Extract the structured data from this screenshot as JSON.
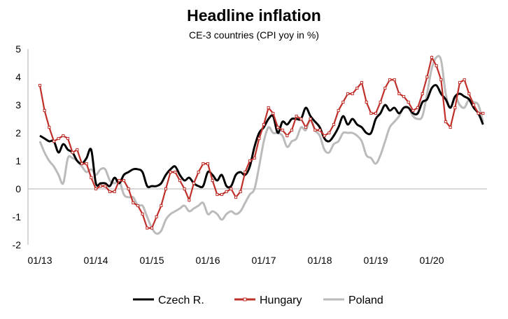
{
  "chart_data": {
    "type": "line",
    "title": "Headline inflation",
    "subtitle": "CE-3 countries (CPI yoy in %)",
    "xlabel": "",
    "ylabel": "",
    "ylim": [
      -2,
      5
    ],
    "yticks": [
      "-2",
      "-1",
      "0",
      "1",
      "2",
      "3",
      "4",
      "5"
    ],
    "xticks": [
      "01/13",
      "01/14",
      "01/15",
      "01/16",
      "01/17",
      "01/18",
      "01/19",
      "01/20"
    ],
    "x_start": "01/13",
    "x_frequency": "monthly",
    "grid": false,
    "legend_position": "bottom",
    "series": [
      {
        "name": "Czech R.",
        "color": "#000000",
        "marker": "none",
        "values": [
          1.9,
          1.8,
          1.7,
          1.7,
          1.3,
          1.6,
          1.4,
          1.3,
          1.0,
          0.9,
          1.1,
          1.4,
          0.2,
          0.2,
          0.2,
          0.1,
          0.4,
          0.2,
          0.5,
          0.6,
          0.7,
          0.7,
          0.6,
          0.1,
          0.1,
          0.1,
          0.2,
          0.5,
          0.7,
          0.8,
          0.5,
          0.3,
          0.4,
          0.2,
          0.1,
          0.1,
          0.6,
          0.5,
          0.3,
          0.5,
          0.1,
          0.1,
          0.5,
          0.6,
          0.5,
          0.8,
          1.5,
          2.0,
          2.2,
          2.5,
          2.6,
          2.0,
          2.4,
          2.3,
          2.5,
          2.5,
          2.5,
          2.9,
          2.6,
          2.4,
          2.2,
          1.8,
          1.7,
          1.9,
          2.2,
          2.6,
          2.3,
          2.5,
          2.3,
          2.2,
          2.0,
          2.0,
          2.5,
          2.7,
          3.0,
          2.8,
          2.9,
          2.7,
          2.9,
          2.9,
          2.7,
          2.7,
          3.1,
          3.2,
          3.6,
          3.7,
          3.4,
          3.2,
          2.9,
          3.3,
          3.4,
          3.3,
          3.2,
          2.9,
          2.7,
          2.3
        ]
      },
      {
        "name": "Hungary",
        "color": "#C0302B",
        "marker": "square",
        "values": [
          3.7,
          2.8,
          2.2,
          1.7,
          1.8,
          1.9,
          1.8,
          1.3,
          1.4,
          0.9,
          0.9,
          0.4,
          0.0,
          0.1,
          0.1,
          -0.1,
          -0.1,
          0.3,
          0.3,
          0.0,
          -0.5,
          -0.6,
          -0.9,
          -1.4,
          -1.4,
          -1.0,
          -0.6,
          0.0,
          0.6,
          0.6,
          0.3,
          0.0,
          -0.4,
          0.2,
          0.6,
          0.9,
          0.9,
          0.3,
          -0.2,
          -0.2,
          -0.1,
          0.0,
          -0.3,
          -0.1,
          0.6,
          1.0,
          1.1,
          1.8,
          2.3,
          2.9,
          2.7,
          2.2,
          2.1,
          1.9,
          2.1,
          2.6,
          2.5,
          2.2,
          2.5,
          2.1,
          2.1,
          1.9,
          2.0,
          2.3,
          2.8,
          3.1,
          3.4,
          3.4,
          3.6,
          3.8,
          3.1,
          2.7,
          2.7,
          3.1,
          3.6,
          3.9,
          3.9,
          3.4,
          3.3,
          3.1,
          2.8,
          2.9,
          3.4,
          4.0,
          4.7,
          4.4,
          3.9,
          2.4,
          2.2,
          2.9,
          3.8,
          3.9,
          3.4,
          3.0,
          2.7,
          2.7
        ]
      },
      {
        "name": "Poland",
        "color": "#BBBBBB",
        "marker": "none",
        "values": [
          1.7,
          1.3,
          1.0,
          0.8,
          0.5,
          0.2,
          1.1,
          1.1,
          1.0,
          0.8,
          0.6,
          0.7,
          0.5,
          0.7,
          0.7,
          0.3,
          0.2,
          0.3,
          -0.2,
          -0.3,
          -0.3,
          -0.6,
          -0.6,
          -1.0,
          -1.4,
          -1.6,
          -1.5,
          -1.1,
          -0.9,
          -0.8,
          -0.7,
          -0.6,
          -0.8,
          -0.7,
          -0.6,
          -0.5,
          -0.9,
          -0.8,
          -0.9,
          -1.1,
          -0.9,
          -0.8,
          -0.9,
          -0.8,
          -0.5,
          -0.2,
          0.0,
          0.8,
          1.7,
          2.2,
          2.0,
          2.0,
          1.9,
          1.5,
          1.7,
          1.8,
          2.2,
          2.1,
          2.5,
          2.1,
          1.9,
          1.4,
          1.3,
          1.6,
          1.7,
          2.0,
          2.0,
          2.0,
          1.9,
          1.7,
          1.2,
          1.1,
          0.9,
          1.2,
          1.7,
          2.2,
          2.4,
          2.6,
          2.9,
          2.9,
          2.6,
          2.5,
          2.6,
          3.4,
          4.3,
          4.7,
          4.6,
          3.4,
          2.9,
          3.3,
          3.0,
          2.9,
          3.2,
          3.1,
          3.0,
          2.4
        ]
      }
    ]
  }
}
